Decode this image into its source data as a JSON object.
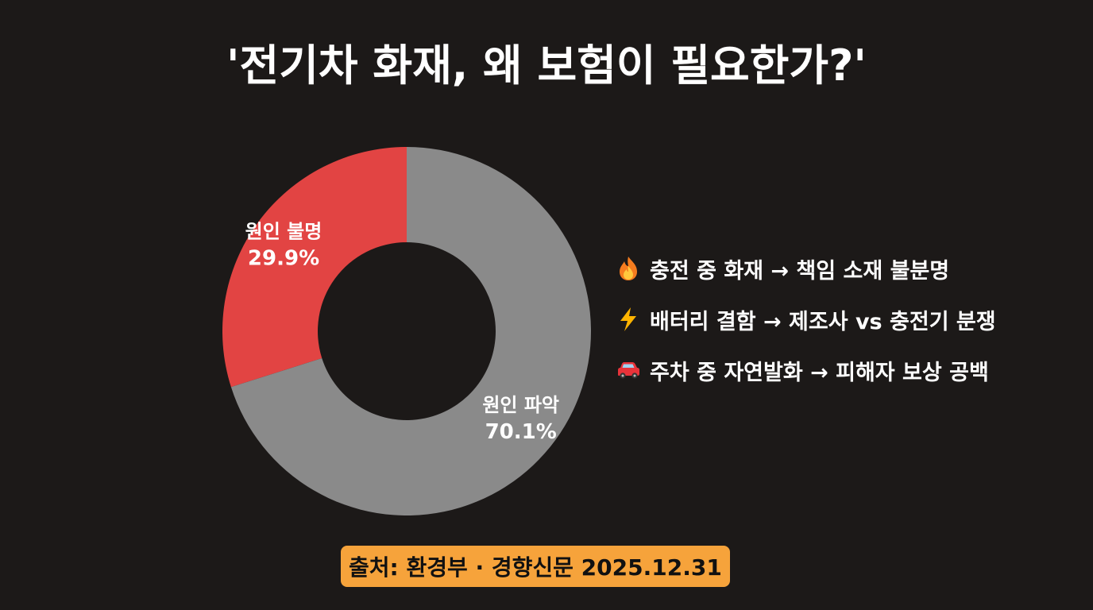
{
  "title": "'전기차 화재, 왜 보험이 필요한가?'",
  "chart_data": {
    "type": "pie",
    "donut": true,
    "slices": [
      {
        "label": "원인 불명",
        "value": 29.9,
        "value_label": "29.9%",
        "color": "#e24443"
      },
      {
        "label": "원인 파악",
        "value": 70.1,
        "value_label": "70.1%",
        "color": "#8a8a8a"
      }
    ]
  },
  "bullets": [
    {
      "icon": "fire-icon",
      "text": "충전 중 화재 → 책임 소재 불분명"
    },
    {
      "icon": "lightning-icon",
      "text": "배터리 결함 → 제조사 vs 충전기 분쟁"
    },
    {
      "icon": "car-icon",
      "text": "주차 중 자연발화 → 피해자 보상 공백"
    }
  ],
  "source": "출처: 환경부 · 경향신문 2025.12.31",
  "colors": {
    "background": "#1c1918",
    "accent_red": "#e24443",
    "gray": "#8a8a8a",
    "source_badge": "#f6a33b"
  }
}
